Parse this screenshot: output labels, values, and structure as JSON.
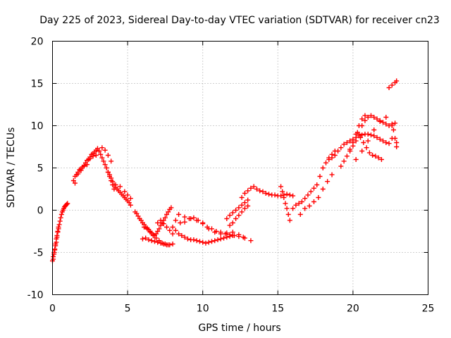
{
  "chart_data": {
    "type": "scatter",
    "title": "Day 225 of 2023, Sidereal Day-to-day VTEC variation (SDTVAR) for receiver cn23",
    "xlabel": "GPS time / hours",
    "ylabel": "SDTVAR / TECUs",
    "xlim": [
      0,
      25
    ],
    "ylim": [
      -10,
      20
    ],
    "xticks": [
      0,
      5,
      10,
      15,
      20,
      25
    ],
    "yticks": [
      -10,
      -5,
      0,
      5,
      10,
      15,
      20
    ],
    "grid": true,
    "marker": "plus",
    "color": "#ff0000",
    "series": [
      {
        "name": "SDTVAR",
        "x": [
          0.0,
          0.05,
          0.1,
          0.15,
          0.2,
          0.25,
          0.3,
          0.35,
          0.4,
          0.45,
          0.5,
          0.55,
          0.6,
          0.65,
          0.7,
          0.75,
          0.8,
          0.85,
          0.9,
          0.95,
          1.0,
          0.05,
          0.1,
          0.15,
          0.2,
          0.25,
          0.3,
          0.35,
          0.4,
          1.4,
          1.5,
          1.6,
          1.7,
          1.8,
          1.9,
          2.0,
          2.1,
          2.2,
          2.3,
          2.4,
          2.5,
          2.6,
          2.7,
          2.8,
          2.9,
          3.0,
          3.1,
          3.2,
          3.3,
          3.4,
          3.5,
          3.6,
          3.7,
          3.8,
          3.9,
          4.0,
          4.1,
          1.5,
          1.7,
          1.9,
          2.1,
          2.3,
          2.5,
          2.7,
          2.9,
          3.1,
          3.3,
          3.5,
          3.7,
          3.9,
          3.7,
          3.8,
          3.9,
          4.0,
          4.1,
          4.2,
          4.3,
          4.4,
          4.5,
          4.6,
          4.7,
          4.8,
          4.9,
          5.0,
          5.1,
          5.2,
          4.2,
          4.5,
          4.8,
          5.0,
          5.2,
          5.5,
          5.6,
          5.7,
          5.8,
          5.9,
          6.0,
          6.1,
          6.2,
          6.3,
          6.4,
          6.5,
          6.6,
          6.7,
          6.8,
          6.9,
          7.0,
          7.1,
          7.2,
          7.3,
          7.4,
          7.5,
          7.6,
          7.7,
          7.8,
          7.9,
          6.0,
          6.2,
          6.4,
          6.6,
          6.8,
          7.0,
          7.2,
          7.4,
          7.6,
          7.8,
          8.0,
          6.1,
          6.3,
          6.5,
          6.7,
          6.9,
          7.1,
          7.3,
          7.5,
          7.7,
          7.0,
          7.2,
          7.4,
          7.6,
          7.8,
          8.0,
          8.0,
          8.2,
          8.4,
          8.6,
          8.8,
          9.0,
          9.2,
          9.4,
          9.6,
          9.8,
          10.0,
          10.2,
          10.4,
          10.6,
          10.8,
          11.0,
          11.2,
          11.4,
          11.6,
          11.8,
          12.0,
          8.2,
          8.5,
          8.8,
          9.1,
          9.4,
          9.7,
          10.0,
          10.3,
          10.6,
          10.9,
          11.2,
          11.5,
          11.8,
          12.1,
          12.4,
          12.7,
          8.4,
          8.8,
          9.2,
          9.6,
          10.0,
          10.4,
          10.8,
          11.2,
          11.6,
          12.0,
          12.4,
          12.8,
          13.2,
          11.6,
          11.8,
          12.0,
          12.2,
          12.4,
          12.6,
          12.8,
          13.0,
          11.8,
          12.0,
          12.2,
          12.4,
          12.6,
          12.8,
          13.0,
          12.6,
          12.8,
          13.0,
          13.2,
          13.4,
          13.6,
          13.8,
          14.0,
          14.2,
          14.4,
          14.6,
          14.8,
          15.0,
          15.2,
          15.4,
          15.6,
          15.8,
          16.0,
          15.2,
          15.3,
          15.4,
          15.5,
          15.6,
          15.7,
          15.8,
          16.0,
          16.2,
          16.4,
          16.6,
          16.8,
          17.0,
          17.2,
          17.4,
          17.6,
          17.8,
          18.0,
          18.2,
          18.4,
          18.6,
          18.8,
          16.5,
          16.8,
          17.1,
          17.4,
          17.7,
          18.0,
          18.3,
          18.6,
          18.4,
          18.6,
          18.8,
          19.0,
          19.2,
          19.4,
          19.6,
          19.8,
          20.0,
          20.2,
          20.4,
          20.6,
          20.8,
          21.0,
          21.2,
          21.4,
          21.6,
          21.8,
          22.0,
          22.2,
          22.4,
          19.8,
          20.0,
          20.2,
          20.4,
          20.6,
          20.8,
          21.0,
          21.2,
          21.4,
          21.6,
          21.8,
          22.0,
          22.2,
          22.4,
          22.6,
          22.8,
          19.2,
          19.4,
          19.6,
          19.8,
          20.0,
          20.2,
          20.4,
          20.6,
          20.8,
          20.3,
          20.5,
          20.7,
          20.9,
          21.1,
          21.3,
          21.5,
          21.7,
          21.9,
          20.2,
          20.6,
          21.0,
          21.4,
          21.8,
          22.2,
          22.6,
          22.9,
          22.4,
          22.6,
          22.8,
          22.9,
          22.6,
          22.7,
          22.8,
          22.9
        ],
        "y": [
          -6.0,
          -5.5,
          -5.0,
          -4.7,
          -4.2,
          -3.8,
          -3.2,
          -2.6,
          -2.0,
          -1.7,
          -1.3,
          -0.9,
          -0.5,
          -0.2,
          0.0,
          0.2,
          0.4,
          0.5,
          0.6,
          0.7,
          0.8,
          -5.8,
          -5.2,
          -4.6,
          -4.0,
          -3.4,
          -3.0,
          -2.5,
          -2.2,
          3.5,
          4.0,
          4.2,
          4.5,
          4.8,
          4.9,
          5.1,
          5.3,
          5.6,
          5.9,
          6.0,
          6.3,
          6.6,
          6.7,
          6.9,
          7.1,
          7.3,
          7.0,
          6.6,
          6.2,
          5.8,
          5.4,
          5.0,
          4.5,
          4.0,
          3.5,
          3.0,
          2.5,
          3.2,
          4.3,
          4.7,
          5.2,
          5.4,
          6.1,
          6.4,
          6.5,
          7.0,
          7.4,
          7.1,
          6.5,
          5.8,
          4.5,
          4.2,
          3.8,
          3.4,
          3.0,
          2.7,
          2.5,
          2.3,
          2.1,
          1.9,
          1.7,
          1.5,
          1.3,
          1.1,
          0.9,
          0.6,
          3.0,
          2.8,
          2.2,
          1.8,
          1.4,
          -0.2,
          -0.4,
          -0.7,
          -1.0,
          -1.2,
          -1.5,
          -1.7,
          -2.0,
          -2.1,
          -2.3,
          -2.5,
          -2.7,
          -2.9,
          -3.0,
          -2.8,
          -2.5,
          -2.2,
          -1.8,
          -1.5,
          -1.2,
          -0.9,
          -0.5,
          -0.2,
          0.1,
          0.3,
          -3.4,
          -3.3,
          -3.5,
          -3.6,
          -3.7,
          -3.8,
          -3.9,
          -4.0,
          -4.1,
          -4.1,
          -4.0,
          -2.0,
          -2.2,
          -2.6,
          -3.0,
          -3.3,
          -3.6,
          -3.9,
          -4.0,
          -4.1,
          -1.5,
          -1.2,
          -1.6,
          -2.0,
          -2.4,
          -2.8,
          -2.0,
          -2.4,
          -2.8,
          -3.0,
          -3.2,
          -3.4,
          -3.5,
          -3.5,
          -3.6,
          -3.7,
          -3.8,
          -3.9,
          -3.8,
          -3.7,
          -3.6,
          -3.5,
          -3.4,
          -3.3,
          -3.2,
          -3.1,
          -3.0,
          -1.2,
          -1.5,
          -1.4,
          -1.0,
          -0.9,
          -1.2,
          -1.6,
          -2.0,
          -2.2,
          -2.5,
          -2.6,
          -2.8,
          -2.9,
          -3.0,
          -3.1,
          -3.2,
          -0.5,
          -0.8,
          -1.0,
          -1.2,
          -1.5,
          -2.2,
          -2.6,
          -2.8,
          -2.7,
          -2.6,
          -2.9,
          -3.3,
          -3.6,
          -1.0,
          -0.6,
          -0.3,
          0.0,
          0.3,
          0.6,
          0.9,
          1.2,
          -1.8,
          -1.5,
          -1.0,
          -0.6,
          -0.2,
          0.2,
          0.5,
          1.5,
          2.0,
          2.3,
          2.6,
          2.8,
          2.5,
          2.3,
          2.2,
          2.0,
          1.9,
          1.8,
          1.8,
          1.7,
          1.7,
          1.8,
          1.9,
          1.8,
          1.7,
          2.8,
          2.2,
          1.5,
          0.8,
          0.2,
          -0.5,
          -1.2,
          0.2,
          0.6,
          0.8,
          1.0,
          1.4,
          1.8,
          2.2,
          2.6,
          3.0,
          4.0,
          5.0,
          5.6,
          6.2,
          6.6,
          7.0,
          -0.5,
          0.2,
          0.5,
          1.0,
          1.5,
          2.5,
          3.4,
          4.2,
          6.0,
          6.2,
          6.5,
          7.0,
          7.4,
          7.8,
          8.0,
          8.2,
          8.4,
          8.6,
          8.8,
          8.9,
          9.0,
          9.0,
          8.9,
          8.8,
          8.6,
          8.4,
          8.2,
          8.0,
          7.9,
          7.2,
          7.6,
          8.2,
          9.0,
          10.0,
          10.6,
          11.0,
          11.2,
          11.0,
          10.8,
          10.6,
          10.4,
          10.2,
          10.0,
          10.2,
          10.3,
          5.2,
          5.8,
          6.4,
          7.0,
          8.0,
          9.0,
          10.0,
          10.8,
          11.2,
          9.2,
          8.6,
          8.0,
          7.4,
          6.8,
          6.5,
          6.4,
          6.2,
          6.0,
          6.0,
          7.0,
          8.2,
          9.5,
          10.5,
          11.0,
          8.5,
          7.5,
          14.5,
          14.8,
          15.1,
          15.3,
          10.0,
          9.5,
          8.5,
          8.0
        ]
      }
    ]
  }
}
